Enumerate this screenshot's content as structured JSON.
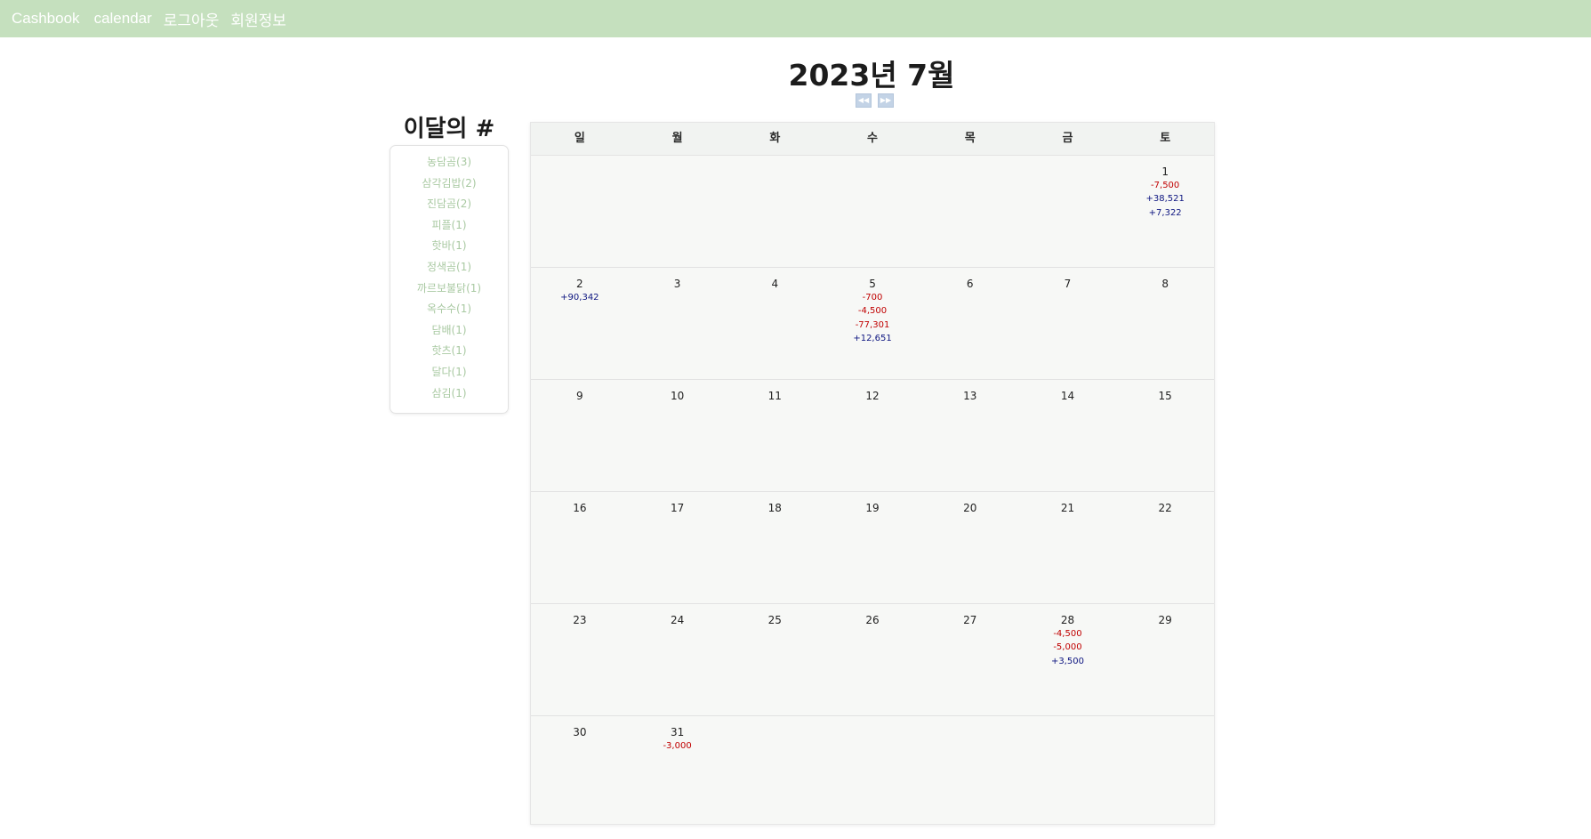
{
  "nav": {
    "brand": "Cashbook",
    "calendar": "calendar",
    "logout": "로그아웃",
    "member_info": "회원정보"
  },
  "header": {
    "month_title": "2023년 7월",
    "prev_button": "◀◀",
    "next_button": "▶▶"
  },
  "hashtags": {
    "title": "이달의 #",
    "items": [
      "농담곰(3)",
      "삼각김밥(2)",
      "진담곰(2)",
      "피플(1)",
      "핫바(1)",
      "정색곰(1)",
      "까르보불닭(1)",
      "옥수수(1)",
      "담배(1)",
      "핫츠(1)",
      "달다(1)",
      "삼김(1)"
    ]
  },
  "calendar": {
    "weekdays": [
      "일",
      "월",
      "화",
      "수",
      "목",
      "금",
      "토"
    ],
    "weeks": [
      [
        {
          "day": "",
          "amounts": []
        },
        {
          "day": "",
          "amounts": []
        },
        {
          "day": "",
          "amounts": []
        },
        {
          "day": "",
          "amounts": []
        },
        {
          "day": "",
          "amounts": []
        },
        {
          "day": "",
          "amounts": []
        },
        {
          "day": "1",
          "amounts": [
            "-7,500",
            "+38,521",
            "+7,322"
          ]
        }
      ],
      [
        {
          "day": "2",
          "amounts": [
            "+90,342"
          ]
        },
        {
          "day": "3",
          "amounts": []
        },
        {
          "day": "4",
          "amounts": []
        },
        {
          "day": "5",
          "amounts": [
            "-700",
            "-4,500",
            "-77,301",
            "+12,651"
          ]
        },
        {
          "day": "6",
          "amounts": []
        },
        {
          "day": "7",
          "amounts": []
        },
        {
          "day": "8",
          "amounts": []
        }
      ],
      [
        {
          "day": "9",
          "amounts": []
        },
        {
          "day": "10",
          "amounts": []
        },
        {
          "day": "11",
          "amounts": []
        },
        {
          "day": "12",
          "amounts": []
        },
        {
          "day": "13",
          "amounts": []
        },
        {
          "day": "14",
          "amounts": []
        },
        {
          "day": "15",
          "amounts": []
        }
      ],
      [
        {
          "day": "16",
          "amounts": []
        },
        {
          "day": "17",
          "amounts": []
        },
        {
          "day": "18",
          "amounts": []
        },
        {
          "day": "19",
          "amounts": []
        },
        {
          "day": "20",
          "amounts": []
        },
        {
          "day": "21",
          "amounts": []
        },
        {
          "day": "22",
          "amounts": []
        }
      ],
      [
        {
          "day": "23",
          "amounts": []
        },
        {
          "day": "24",
          "amounts": []
        },
        {
          "day": "25",
          "amounts": []
        },
        {
          "day": "26",
          "amounts": []
        },
        {
          "day": "27",
          "amounts": []
        },
        {
          "day": "28",
          "amounts": [
            "-4,500",
            "-5,000",
            "+3,500"
          ]
        },
        {
          "day": "29",
          "amounts": []
        }
      ],
      [
        {
          "day": "30",
          "amounts": []
        },
        {
          "day": "31",
          "amounts": [
            "-3,000"
          ]
        },
        {
          "day": "",
          "amounts": []
        },
        {
          "day": "",
          "amounts": []
        },
        {
          "day": "",
          "amounts": []
        },
        {
          "day": "",
          "amounts": []
        },
        {
          "day": "",
          "amounts": []
        }
      ]
    ]
  },
  "colors": {
    "navbar_bg": "#c5e0be",
    "hashtag_text": "#a9c9a2",
    "expense": "#c00000",
    "income": "#0d1580"
  }
}
